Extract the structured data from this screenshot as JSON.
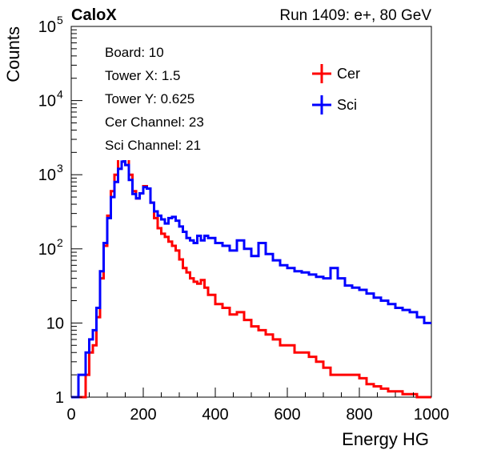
{
  "chart_data": {
    "type": "line",
    "experiment_label": "CaloX",
    "run_label": "Run 1409: e+, 80 GeV",
    "xlabel": "Energy HG",
    "ylabel": "Counts",
    "xlim": [
      0,
      1000
    ],
    "ylim": [
      1,
      100000
    ],
    "y_scale": "log",
    "x_ticks": [
      0,
      200,
      400,
      600,
      800,
      1000
    ],
    "y_ticks": [
      {
        "value": 1,
        "base": "1",
        "exp": ""
      },
      {
        "value": 10,
        "base": "10",
        "exp": ""
      },
      {
        "value": 100,
        "base": "10",
        "exp": "2"
      },
      {
        "value": 1000,
        "base": "10",
        "exp": "3"
      },
      {
        "value": 10000,
        "base": "10",
        "exp": "4"
      },
      {
        "value": 100000,
        "base": "10",
        "exp": "5"
      }
    ],
    "grid": false,
    "legend_position": "top-right",
    "info_lines": [
      "Board: 10",
      "Tower X: 1.5",
      "Tower Y: 0.625",
      "Cer Channel: 23",
      "Sci Channel: 21"
    ],
    "series": [
      {
        "name": "Cer",
        "color": "#ff0000",
        "points": [
          [
            0,
            0
          ],
          [
            20,
            1
          ],
          [
            40,
            2
          ],
          [
            50,
            4
          ],
          [
            60,
            5
          ],
          [
            70,
            12
          ],
          [
            80,
            40
          ],
          [
            90,
            110
          ],
          [
            100,
            280
          ],
          [
            110,
            600
          ],
          [
            120,
            1000
          ],
          [
            130,
            1700
          ],
          [
            140,
            2300
          ],
          [
            145,
            2400
          ],
          [
            150,
            1900
          ],
          [
            160,
            1000
          ],
          [
            170,
            600
          ],
          [
            180,
            480
          ],
          [
            190,
            560
          ],
          [
            200,
            700
          ],
          [
            210,
            650
          ],
          [
            220,
            420
          ],
          [
            230,
            260
          ],
          [
            240,
            190
          ],
          [
            250,
            160
          ],
          [
            260,
            145
          ],
          [
            270,
            125
          ],
          [
            280,
            110
          ],
          [
            290,
            95
          ],
          [
            300,
            72
          ],
          [
            310,
            55
          ],
          [
            320,
            48
          ],
          [
            330,
            40
          ],
          [
            340,
            36
          ],
          [
            350,
            34
          ],
          [
            360,
            38
          ],
          [
            370,
            30
          ],
          [
            380,
            24
          ],
          [
            400,
            18
          ],
          [
            420,
            16
          ],
          [
            440,
            13
          ],
          [
            460,
            14
          ],
          [
            480,
            11
          ],
          [
            500,
            9
          ],
          [
            520,
            8
          ],
          [
            540,
            7
          ],
          [
            560,
            6
          ],
          [
            580,
            5
          ],
          [
            600,
            5
          ],
          [
            620,
            4
          ],
          [
            640,
            4
          ],
          [
            660,
            3.5
          ],
          [
            680,
            3
          ],
          [
            700,
            2.5
          ],
          [
            720,
            2
          ],
          [
            740,
            2
          ],
          [
            760,
            2
          ],
          [
            780,
            2
          ],
          [
            800,
            1.8
          ],
          [
            820,
            1.5
          ],
          [
            840,
            1.4
          ],
          [
            860,
            1.3
          ],
          [
            880,
            1.2
          ],
          [
            900,
            1.2
          ],
          [
            920,
            1.1
          ],
          [
            940,
            1.1
          ],
          [
            960,
            1
          ],
          [
            980,
            1
          ],
          [
            1000,
            1
          ]
        ]
      },
      {
        "name": "Sci",
        "color": "#0000ff",
        "points": [
          [
            0,
            1
          ],
          [
            20,
            2
          ],
          [
            40,
            4
          ],
          [
            50,
            6
          ],
          [
            60,
            8
          ],
          [
            70,
            16
          ],
          [
            80,
            50
          ],
          [
            90,
            120
          ],
          [
            100,
            260
          ],
          [
            110,
            500
          ],
          [
            120,
            800
          ],
          [
            130,
            1200
          ],
          [
            140,
            1500
          ],
          [
            145,
            1550
          ],
          [
            150,
            1350
          ],
          [
            160,
            850
          ],
          [
            170,
            550
          ],
          [
            180,
            480
          ],
          [
            190,
            560
          ],
          [
            200,
            680
          ],
          [
            210,
            650
          ],
          [
            220,
            420
          ],
          [
            230,
            320
          ],
          [
            240,
            280
          ],
          [
            250,
            250
          ],
          [
            260,
            220
          ],
          [
            270,
            260
          ],
          [
            280,
            270
          ],
          [
            290,
            240
          ],
          [
            300,
            200
          ],
          [
            310,
            170
          ],
          [
            320,
            140
          ],
          [
            330,
            130
          ],
          [
            340,
            120
          ],
          [
            350,
            150
          ],
          [
            360,
            130
          ],
          [
            370,
            150
          ],
          [
            380,
            140
          ],
          [
            400,
            120
          ],
          [
            420,
            110
          ],
          [
            440,
            95
          ],
          [
            460,
            130
          ],
          [
            480,
            100
          ],
          [
            500,
            80
          ],
          [
            520,
            120
          ],
          [
            540,
            85
          ],
          [
            560,
            70
          ],
          [
            580,
            60
          ],
          [
            600,
            55
          ],
          [
            620,
            50
          ],
          [
            640,
            48
          ],
          [
            660,
            45
          ],
          [
            680,
            42
          ],
          [
            700,
            40
          ],
          [
            720,
            55
          ],
          [
            740,
            40
          ],
          [
            760,
            32
          ],
          [
            780,
            30
          ],
          [
            800,
            28
          ],
          [
            820,
            25
          ],
          [
            840,
            22
          ],
          [
            860,
            20
          ],
          [
            880,
            18
          ],
          [
            900,
            16
          ],
          [
            920,
            15
          ],
          [
            940,
            14
          ],
          [
            960,
            12
          ],
          [
            980,
            10
          ],
          [
            1000,
            10
          ]
        ]
      }
    ]
  }
}
